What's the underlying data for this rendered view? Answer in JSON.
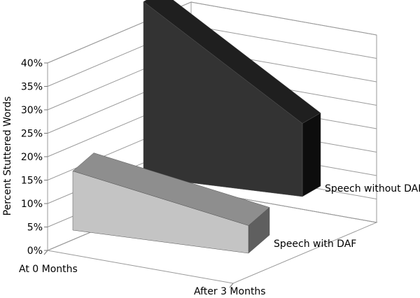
{
  "chart_data": {
    "type": "bar",
    "subtype": "3d-area",
    "title": "",
    "xlabel": "",
    "ylabel": "Percent Stuttered Words",
    "ylim": [
      0,
      40
    ],
    "yticks": [
      "0%",
      "5%",
      "10%",
      "15%",
      "20%",
      "25%",
      "30%",
      "35%",
      "40%"
    ],
    "categories": [
      "At 0 Months",
      "After 3 Months"
    ],
    "grid": true,
    "series": [
      {
        "name": "Speech with DAF",
        "values": [
          12.6,
          5.9
        ],
        "color": "#c4c4c4"
      },
      {
        "name": "Speech without DAF",
        "values": [
          37.4,
          15.6
        ],
        "color": "#333333"
      }
    ]
  }
}
